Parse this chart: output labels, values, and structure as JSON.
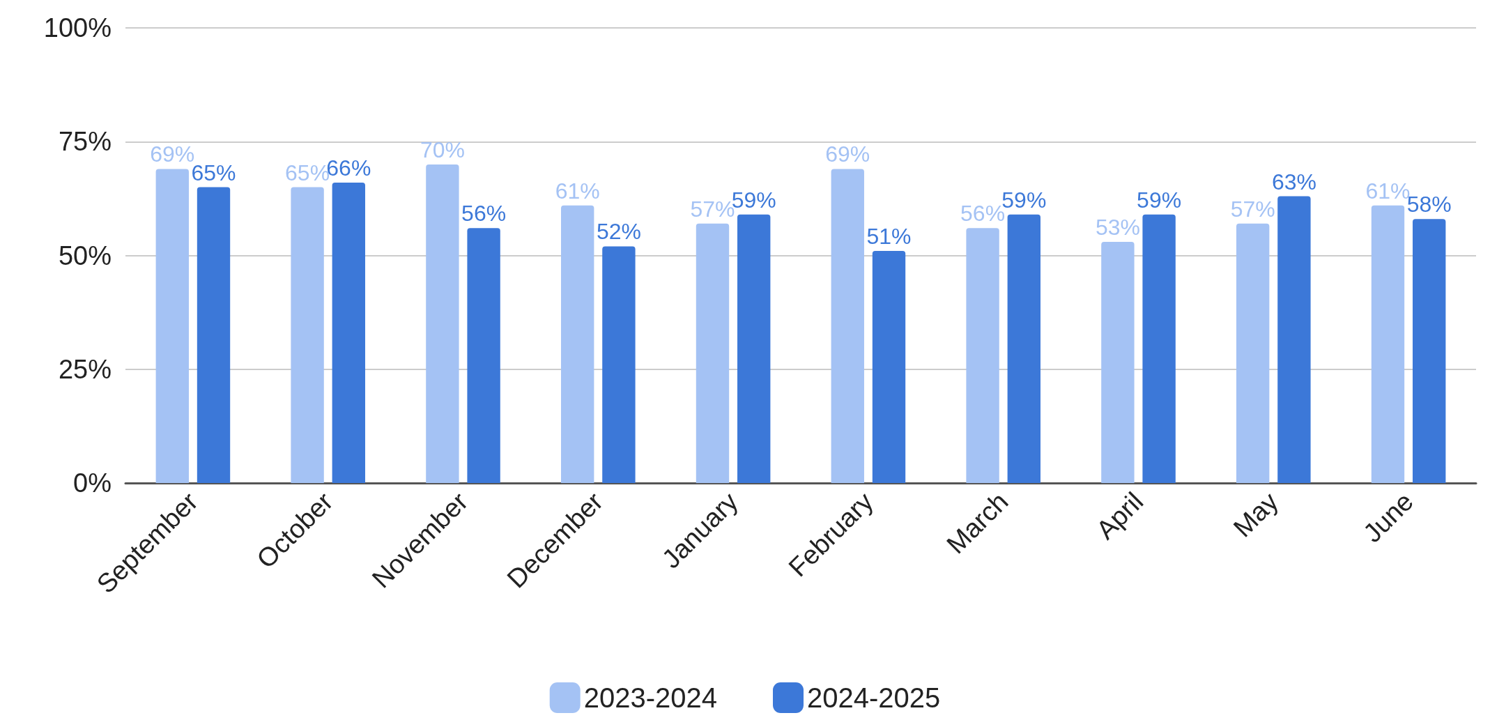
{
  "chart_data": {
    "type": "bar",
    "categories": [
      "September",
      "October",
      "November",
      "December",
      "January",
      "February",
      "March",
      "April",
      "May",
      "June"
    ],
    "series": [
      {
        "name": "2023-2024",
        "color": "#a4c2f4",
        "values": [
          69,
          65,
          70,
          61,
          57,
          69,
          56,
          53,
          57,
          61
        ],
        "value_labels": [
          "69%",
          "65%",
          "70%",
          "61%",
          "57%",
          "69%",
          "56%",
          "53%",
          "57%",
          "61%"
        ]
      },
      {
        "name": "2024-2025",
        "color": "#3c78d8",
        "values": [
          65,
          66,
          56,
          52,
          59,
          51,
          59,
          59,
          63,
          58
        ],
        "value_labels": [
          "65%",
          "66%",
          "56%",
          "52%",
          "59%",
          "51%",
          "59%",
          "59%",
          "63%",
          "58%"
        ]
      }
    ],
    "ylim": [
      0,
      100
    ],
    "yticks": [
      {
        "value": 0,
        "label": "0%"
      },
      {
        "value": 25,
        "label": "25%"
      },
      {
        "value": 50,
        "label": "50%"
      },
      {
        "value": 75,
        "label": "75%"
      },
      {
        "value": 100,
        "label": "100%"
      }
    ],
    "grid": "y",
    "legend": "bottom"
  }
}
